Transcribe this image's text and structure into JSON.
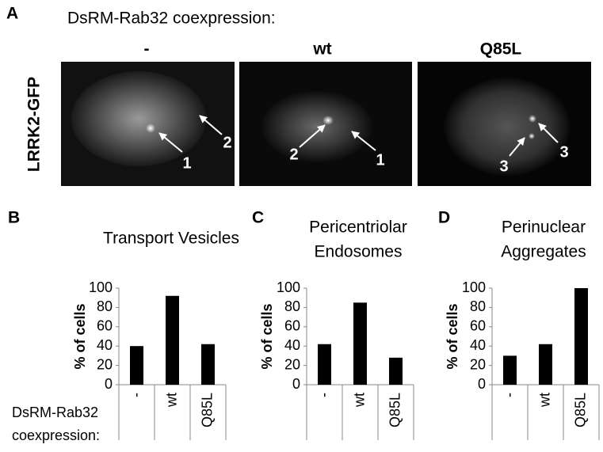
{
  "figure": {
    "panel_a": {
      "letter": "A",
      "coexpression_label": "DsRM-Rab32 coexpression:",
      "row_label": "LRRK2-GFP",
      "columns": [
        "-",
        "wt",
        "Q85L"
      ],
      "annotations": [
        [
          "1",
          "2"
        ],
        [
          "2",
          "1"
        ],
        [
          "3",
          "3"
        ]
      ]
    },
    "bottom_label": [
      "DsRM-Rab32",
      "coexpression:"
    ]
  },
  "chart_data": [
    {
      "type": "bar",
      "panel": "B",
      "title": [
        "Transport Vesicles"
      ],
      "y_label": "% of cells",
      "categories": [
        "-",
        "wt",
        "Q85L"
      ],
      "values": [
        40,
        92,
        42
      ],
      "color": "#000000",
      "ylim": [
        0,
        100
      ],
      "yticks": [
        0,
        20,
        40,
        60,
        80,
        100
      ]
    },
    {
      "type": "bar",
      "panel": "C",
      "title": [
        "Pericentriolar",
        "Endosomes"
      ],
      "y_label": "% of cells",
      "categories": [
        "-",
        "wt",
        "Q85L"
      ],
      "values": [
        42,
        85,
        28
      ],
      "color": "#000000",
      "ylim": [
        0,
        100
      ],
      "yticks": [
        0,
        20,
        40,
        60,
        80,
        100
      ]
    },
    {
      "type": "bar",
      "panel": "D",
      "title": [
        "Perinuclear",
        "Aggregates"
      ],
      "y_label": "% of cells",
      "categories": [
        "-",
        "wt",
        "Q85L"
      ],
      "values": [
        30,
        42,
        100
      ],
      "color": "#000000",
      "ylim": [
        0,
        100
      ],
      "yticks": [
        0,
        20,
        40,
        60,
        80,
        100
      ]
    }
  ]
}
